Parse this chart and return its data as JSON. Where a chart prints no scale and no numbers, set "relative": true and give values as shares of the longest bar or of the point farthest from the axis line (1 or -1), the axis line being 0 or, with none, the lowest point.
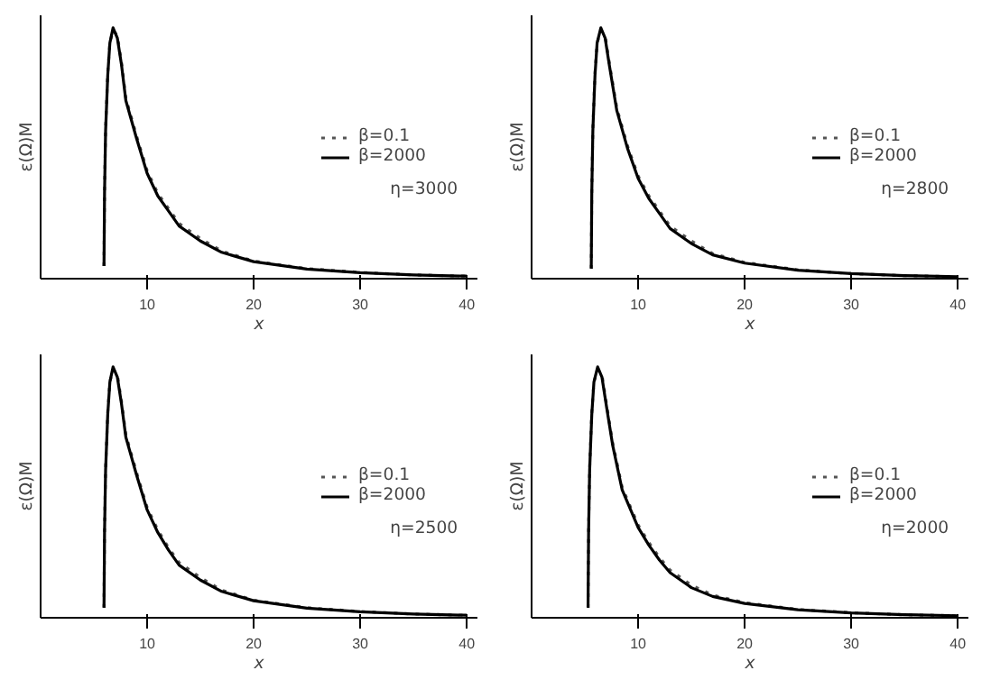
{
  "chart_data": [
    {
      "type": "line",
      "relative": true,
      "xlabel": "x",
      "ylabel": "ε(Ω)M",
      "xlim": [
        0,
        41
      ],
      "xticks": [
        10,
        20,
        30,
        40
      ],
      "tick_labels": "x",
      "legend": "right",
      "grid": false,
      "annotations": [
        "η=3000"
      ],
      "x": [
        5.95,
        6.0,
        6.1,
        6.3,
        6.5,
        6.8,
        7.2,
        7.6,
        8,
        9,
        10,
        11,
        12,
        13,
        15,
        17,
        20,
        25,
        30,
        35,
        40
      ],
      "series": [
        {
          "name": "β=0.1",
          "color": "#555555",
          "line_style": "dotted",
          "values": [
            0.05,
            0.35,
            0.6,
            0.82,
            0.94,
            0.99,
            0.97,
            0.86,
            0.72,
            0.57,
            0.43,
            0.34,
            0.28,
            0.22,
            0.16,
            0.11,
            0.07,
            0.04,
            0.025,
            0.015,
            0.01
          ]
        },
        {
          "name": "β=2000",
          "color": "#000000",
          "line_style": "solid",
          "values": [
            0.05,
            0.34,
            0.59,
            0.81,
            0.94,
            1,
            0.96,
            0.85,
            0.71,
            0.56,
            0.42,
            0.33,
            0.27,
            0.21,
            0.15,
            0.105,
            0.068,
            0.038,
            0.024,
            0.015,
            0.01
          ]
        }
      ]
    },
    {
      "type": "line",
      "relative": true,
      "xlabel": "x",
      "ylabel": "ε(Ω)M",
      "xlim": [
        0,
        41
      ],
      "xticks": [
        10,
        20,
        30,
        40
      ],
      "tick_labels": "x",
      "legend": "right",
      "grid": false,
      "annotations": [
        "η=2800"
      ],
      "x": [
        5.6,
        5.65,
        5.75,
        5.95,
        6.15,
        6.5,
        6.9,
        7.3,
        8,
        9,
        10,
        11,
        12,
        13,
        15,
        17,
        20,
        25,
        30,
        35,
        40
      ],
      "series": [
        {
          "name": "β=0.1",
          "color": "#555555",
          "line_style": "dotted",
          "values": [
            0.04,
            0.35,
            0.6,
            0.82,
            0.94,
            0.99,
            0.97,
            0.86,
            0.68,
            0.53,
            0.41,
            0.33,
            0.27,
            0.21,
            0.15,
            0.1,
            0.065,
            0.035,
            0.02,
            0.012,
            0.008
          ]
        },
        {
          "name": "β=2000",
          "color": "#000000",
          "line_style": "solid",
          "values": [
            0.04,
            0.34,
            0.59,
            0.81,
            0.94,
            1,
            0.96,
            0.85,
            0.67,
            0.52,
            0.4,
            0.32,
            0.26,
            0.2,
            0.14,
            0.095,
            0.062,
            0.034,
            0.02,
            0.012,
            0.008
          ]
        }
      ]
    },
    {
      "type": "line",
      "relative": true,
      "xlabel": "x",
      "ylabel": "ε(Ω)M",
      "xlim": [
        0,
        41
      ],
      "xticks": [
        10,
        20,
        30,
        40
      ],
      "tick_labels": "x",
      "legend": "right",
      "grid": false,
      "annotations": [
        "η=2500"
      ],
      "x": [
        5.95,
        6.0,
        6.1,
        6.3,
        6.5,
        6.8,
        7.2,
        7.6,
        8,
        9,
        10,
        11,
        12,
        13,
        15,
        17,
        20,
        25,
        30,
        35,
        40
      ],
      "series": [
        {
          "name": "β=0.1",
          "color": "#555555",
          "line_style": "dotted",
          "values": [
            0.04,
            0.35,
            0.6,
            0.82,
            0.94,
            0.99,
            0.97,
            0.86,
            0.73,
            0.58,
            0.44,
            0.35,
            0.28,
            0.22,
            0.16,
            0.11,
            0.07,
            0.04,
            0.025,
            0.015,
            0.01
          ]
        },
        {
          "name": "β=2000",
          "color": "#000000",
          "line_style": "solid",
          "values": [
            0.04,
            0.34,
            0.59,
            0.81,
            0.94,
            1,
            0.96,
            0.85,
            0.72,
            0.57,
            0.43,
            0.34,
            0.27,
            0.21,
            0.15,
            0.105,
            0.068,
            0.038,
            0.024,
            0.015,
            0.01
          ]
        }
      ]
    },
    {
      "type": "line",
      "relative": true,
      "xlabel": "x",
      "ylabel": "ε(Ω)M",
      "xlim": [
        0,
        41
      ],
      "xticks": [
        10,
        20,
        30,
        40
      ],
      "tick_labels": "x",
      "legend": "right",
      "grid": false,
      "annotations": [
        "η=2000"
      ],
      "x": [
        5.3,
        5.35,
        5.45,
        5.65,
        5.85,
        6.2,
        6.6,
        7.0,
        7.6,
        8.5,
        10,
        11,
        12,
        13,
        15,
        17,
        20,
        25,
        30,
        35,
        40
      ],
      "series": [
        {
          "name": "β=0.1",
          "color": "#555555",
          "line_style": "dotted",
          "values": [
            0.04,
            0.35,
            0.6,
            0.82,
            0.94,
            0.99,
            0.97,
            0.86,
            0.7,
            0.52,
            0.37,
            0.3,
            0.24,
            0.19,
            0.13,
            0.09,
            0.06,
            0.033,
            0.02,
            0.012,
            0.008
          ]
        },
        {
          "name": "β=2000",
          "color": "#000000",
          "line_style": "solid",
          "values": [
            0.04,
            0.34,
            0.59,
            0.81,
            0.94,
            1,
            0.96,
            0.85,
            0.69,
            0.51,
            0.36,
            0.29,
            0.23,
            0.18,
            0.12,
            0.085,
            0.057,
            0.032,
            0.019,
            0.012,
            0.008
          ]
        }
      ]
    }
  ]
}
